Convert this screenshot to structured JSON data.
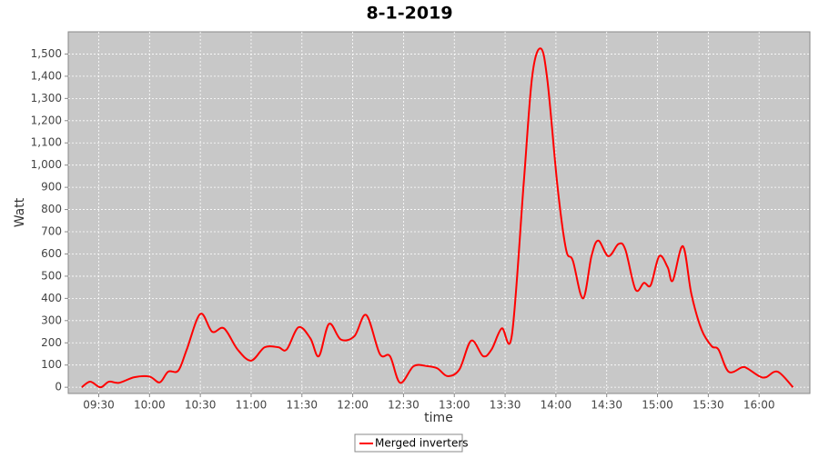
{
  "chart_data": {
    "type": "line",
    "title": "8-1-2019",
    "x_label": "time",
    "y_label": "Watt",
    "x": [
      "09:20",
      "09:25",
      "09:31",
      "09:36",
      "09:42",
      "09:51",
      "10:00",
      "10:06",
      "10:11",
      "10:17",
      "10:22",
      "10:30",
      "10:37",
      "10:44",
      "10:52",
      "11:00",
      "11:08",
      "11:16",
      "11:21",
      "11:28",
      "11:35",
      "11:40",
      "11:46",
      "11:53",
      "12:01",
      "12:08",
      "12:16",
      "12:22",
      "12:28",
      "12:36",
      "12:44",
      "12:50",
      "12:56",
      "13:03",
      "13:10",
      "13:17",
      "13:22",
      "13:28",
      "13:34",
      "13:41",
      "13:46",
      "13:51",
      "13:55",
      "14:01",
      "14:06",
      "14:10",
      "14:16",
      "14:21",
      "14:25",
      "14:31",
      "14:37",
      "14:41",
      "14:47",
      "14:52",
      "14:56",
      "15:01",
      "15:06",
      "15:09",
      "15:15",
      "15:20",
      "15:26",
      "15:32",
      "15:36",
      "15:42",
      "15:50",
      "15:53",
      "16:00",
      "16:04",
      "16:11",
      "16:20"
    ],
    "series": [
      {
        "name": "Merged inverters",
        "color": "#ff0000",
        "values": [
          0,
          25,
          0,
          25,
          20,
          45,
          48,
          22,
          70,
          75,
          170,
          330,
          250,
          265,
          170,
          120,
          180,
          180,
          170,
          270,
          220,
          140,
          285,
          215,
          230,
          325,
          150,
          140,
          20,
          95,
          95,
          85,
          50,
          80,
          210,
          140,
          170,
          265,
          235,
          920,
          1400,
          1525,
          1380,
          900,
          620,
          570,
          400,
          590,
          660,
          590,
          645,
          620,
          440,
          470,
          460,
          590,
          540,
          480,
          635,
          420,
          260,
          185,
          170,
          70,
          90,
          85,
          50,
          45,
          70,
          0
        ]
      }
    ],
    "xlim": [
      "09:12",
      "16:30"
    ],
    "xticks": [
      "09:30",
      "10:00",
      "10:30",
      "11:00",
      "11:30",
      "12:00",
      "12:30",
      "13:00",
      "13:30",
      "14:00",
      "14:30",
      "15:00",
      "15:30",
      "16:00"
    ],
    "ylim": [
      -28,
      1600
    ],
    "yticks": [
      0,
      100,
      200,
      300,
      400,
      500,
      600,
      700,
      800,
      900,
      {
        "value": 1000,
        "label": "1,000"
      },
      {
        "value": 1100,
        "label": "1,100"
      },
      {
        "value": 1200,
        "label": "1,200"
      },
      {
        "value": 1300,
        "label": "1,300"
      },
      {
        "value": 1400,
        "label": "1,400"
      },
      {
        "value": 1500,
        "label": "1,500"
      }
    ],
    "grid": true,
    "legend": "bottom"
  }
}
